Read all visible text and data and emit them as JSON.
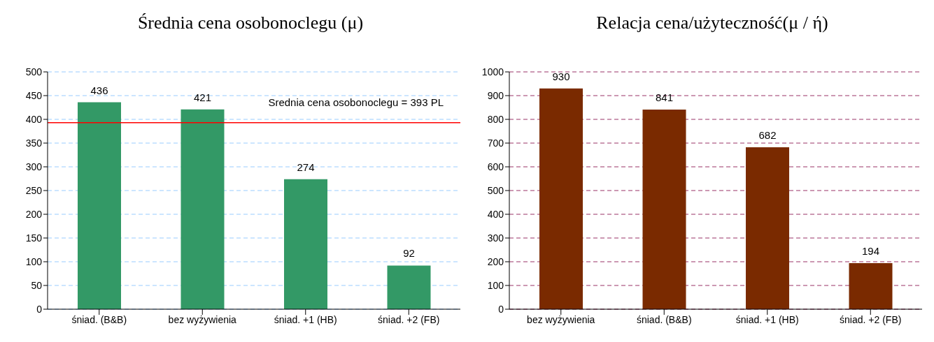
{
  "chart_data": [
    {
      "type": "bar",
      "title": "Średnia cena osobonoclegu (μ)",
      "categories": [
        "śniad. (B&B)",
        "bez wyżywienia",
        "śniad. +1 (HB)",
        "śniad. +2 (FB)"
      ],
      "values": [
        436,
        421,
        274,
        92
      ],
      "color": "#339966",
      "ylim": [
        0,
        500
      ],
      "yticks": [
        0,
        50,
        100,
        150,
        200,
        250,
        300,
        350,
        400,
        450,
        500
      ],
      "grid": "y",
      "data_labels": true,
      "ref_lines": [
        {
          "axis": "y",
          "value": 393,
          "label": "Srednia cena osobonoclegu = 393 PL",
          "color": "#ff0000"
        }
      ]
    },
    {
      "type": "bar",
      "title": "Relacja cena/użyteczność(μ / ή)",
      "categories": [
        "bez wyżywienia",
        "śniad. (B&B)",
        "śniad. +1 (HB)",
        "śniad. +2 (FB)"
      ],
      "values": [
        930,
        841,
        682,
        194
      ],
      "color": "#7a2a00",
      "ylim": [
        0,
        1000
      ],
      "yticks": [
        0,
        100,
        200,
        300,
        400,
        500,
        600,
        700,
        800,
        900,
        1000
      ],
      "grid": "y",
      "data_labels": true
    }
  ]
}
